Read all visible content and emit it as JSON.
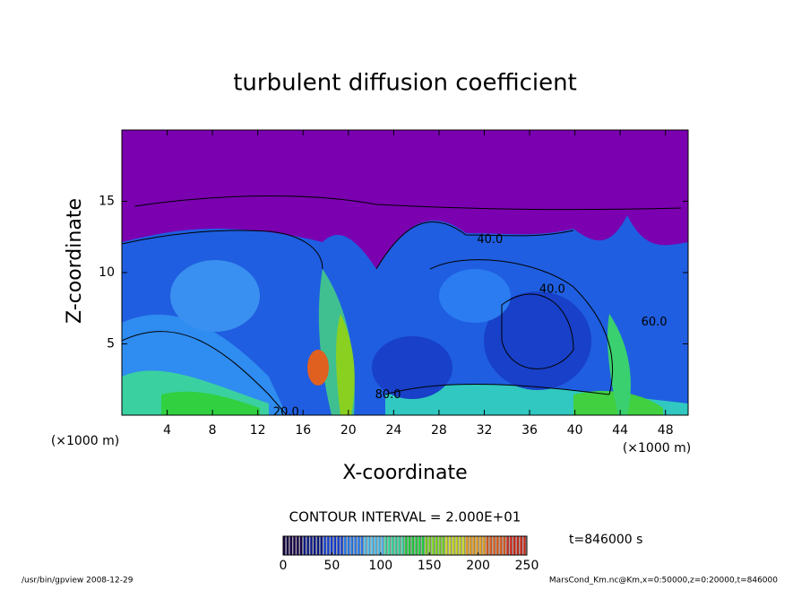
{
  "chart_data": {
    "type": "heatmap",
    "title": "turbulent diffusion coefficient",
    "xlabel": "X-coordinate",
    "ylabel": "Z-coordinate",
    "x_unit": "(×1000 m)",
    "y_unit": "(×1000 m)",
    "xlim": [
      0,
      50
    ],
    "xticks": [
      4,
      8,
      12,
      16,
      20,
      24,
      28,
      32,
      36,
      40,
      44,
      48
    ],
    "ylim": [
      0,
      20
    ],
    "yticks": [
      5,
      10,
      15
    ],
    "contour_labels": [
      {
        "text": "40.0",
        "x": 32.5,
        "y": 12.3
      },
      {
        "text": "40.0",
        "x": 38,
        "y": 8.8
      },
      {
        "text": "80.0",
        "x": 23.5,
        "y": 1.4
      },
      {
        "text": "20.0",
        "x": 14.5,
        "y": 0.2
      },
      {
        "text": "60.0",
        "x": 47,
        "y": 6.5
      }
    ],
    "contour_interval": "CONTOUR INTERVAL = 2.000E+01",
    "colorbar": {
      "lim": [
        0,
        250
      ],
      "ticks": [
        0,
        50,
        100,
        150,
        200,
        250
      ],
      "colors": [
        "#16004a",
        "#0a1a8c",
        "#1340d8",
        "#2a7cf0",
        "#4fc0f0",
        "#38d8a0",
        "#22d040",
        "#7ad820",
        "#c8d820",
        "#e8a020",
        "#e06020",
        "#d02a1a"
      ]
    },
    "time_label": "t=846000 s",
    "footer_left": "/usr/bin/gpview  2008-12-29",
    "footer_right": "MarsCond_Km.nc@Km,x=0:50000,z=0:20000,t=846000"
  }
}
